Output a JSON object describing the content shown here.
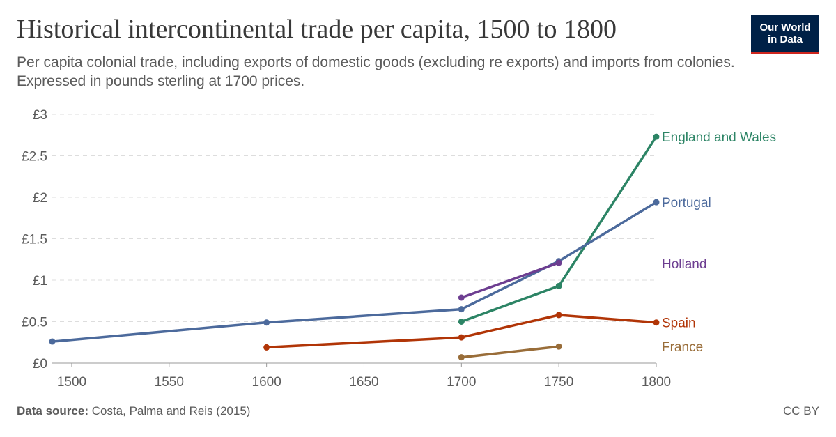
{
  "header": {
    "title": "Historical intercontinental trade per capita, 1500 to 1800",
    "subtitle": "Per  capita colonial trade, including exports of domestic goods (excluding re  exports) and imports from colonies. Expressed in pounds sterling at 1700 prices."
  },
  "logo": {
    "line1": "Our World",
    "line2": "in Data",
    "background_color": "#002147",
    "accent_color": "#ce261e"
  },
  "footer": {
    "source_label": "Data source:",
    "source_text": "Costa, Palma and Reis (2015)",
    "license": "CC BY"
  },
  "chart_data": {
    "type": "line",
    "title": "Historical intercontinental trade per capita, 1500 to 1800",
    "xlim": [
      1490,
      1800
    ],
    "ylim": [
      0,
      3
    ],
    "x_ticks": [
      1500,
      1550,
      1600,
      1650,
      1700,
      1750,
      1800
    ],
    "x_tick_labels": [
      "1500",
      "1550",
      "1600",
      "1650",
      "1700",
      "1750",
      "1800"
    ],
    "y_ticks": [
      0,
      0.5,
      1,
      1.5,
      2,
      2.5,
      3
    ],
    "y_tick_labels": [
      "£0",
      "£0.5",
      "£1",
      "£1.5",
      "£2",
      "£2.5",
      "£3"
    ],
    "grid": "horizontal dashed",
    "legend": "inline labels at right",
    "series": [
      {
        "name": "England and Wales",
        "color": "#2c8465",
        "points": [
          [
            1700,
            0.5
          ],
          [
            1750,
            0.93
          ],
          [
            1800,
            2.73
          ]
        ]
      },
      {
        "name": "Portugal",
        "color": "#4c6a9c",
        "points": [
          [
            1490,
            0.26
          ],
          [
            1600,
            0.49
          ],
          [
            1700,
            0.65
          ],
          [
            1750,
            1.23
          ],
          [
            1800,
            1.94
          ]
        ]
      },
      {
        "name": "Holland",
        "color": "#6d3e91",
        "points": [
          [
            1700,
            0.79
          ],
          [
            1750,
            1.21
          ]
        ]
      },
      {
        "name": "Spain",
        "color": "#b13507",
        "points": [
          [
            1600,
            0.19
          ],
          [
            1700,
            0.31
          ],
          [
            1750,
            0.58
          ],
          [
            1800,
            0.49
          ]
        ]
      },
      {
        "name": "France",
        "color": "#996d39",
        "points": [
          [
            1700,
            0.07
          ],
          [
            1750,
            0.2
          ]
        ]
      }
    ]
  }
}
